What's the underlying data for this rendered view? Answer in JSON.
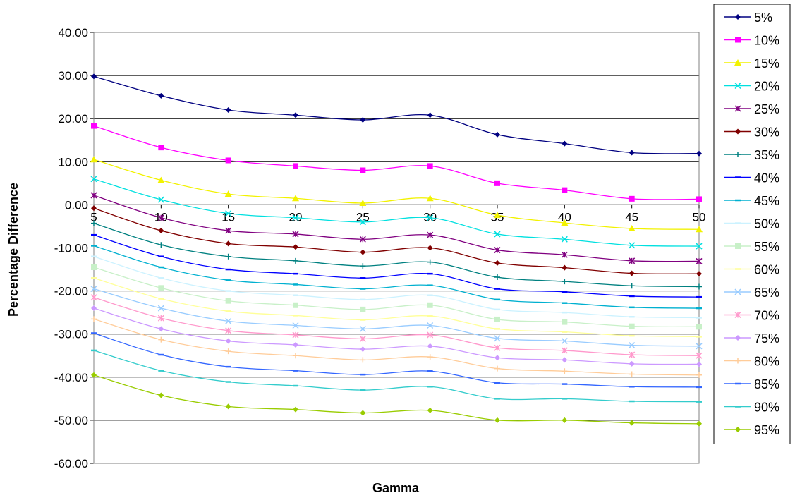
{
  "chart_data": {
    "type": "line",
    "title": "",
    "xlabel": "Gamma",
    "ylabel": "Percentage Difference",
    "x": [
      5,
      10,
      15,
      20,
      25,
      30,
      35,
      40,
      45,
      50
    ],
    "x_tick_labels": [
      "5",
      "10",
      "15",
      "20",
      "25",
      "30",
      "35",
      "40",
      "45",
      "50"
    ],
    "ylim": [
      -60,
      40
    ],
    "y_ticks": [
      40,
      30,
      20,
      10,
      0,
      -10,
      -20,
      -30,
      -40,
      -50,
      -60
    ],
    "y_tick_labels": [
      "40.00",
      "30.00",
      "20.00",
      "10.00",
      "0.00",
      "-10.00",
      "-20.00",
      "-30.00",
      "-40.00",
      "-50.00",
      "-60.00"
    ],
    "grid": "horizontal",
    "legend_position": "right",
    "series": [
      {
        "name": "5%",
        "color": "#000080",
        "marker": "diamond",
        "values": [
          29.8,
          25.3,
          22.0,
          20.8,
          19.7,
          20.8,
          16.3,
          14.2,
          12.1,
          11.9
        ]
      },
      {
        "name": "10%",
        "color": "#ff00ff",
        "marker": "square",
        "values": [
          18.3,
          13.3,
          10.3,
          9.0,
          8.0,
          9.0,
          5.0,
          3.4,
          1.4,
          1.3
        ]
      },
      {
        "name": "15%",
        "color": "#f2f200",
        "marker": "triangle",
        "values": [
          10.5,
          5.7,
          2.5,
          1.5,
          0.4,
          1.5,
          -2.4,
          -4.2,
          -5.5,
          -5.7
        ]
      },
      {
        "name": "20%",
        "color": "#00e0e0",
        "marker": "x",
        "values": [
          6.0,
          1.2,
          -2.0,
          -3.0,
          -4.0,
          -3.0,
          -6.8,
          -8.0,
          -9.4,
          -9.6
        ]
      },
      {
        "name": "25%",
        "color": "#800080",
        "marker": "star",
        "values": [
          2.2,
          -3.0,
          -6.0,
          -6.8,
          -8.0,
          -7.0,
          -10.5,
          -11.6,
          -13.0,
          -13.1
        ]
      },
      {
        "name": "30%",
        "color": "#800000",
        "marker": "diamond",
        "values": [
          -0.8,
          -6.0,
          -9.0,
          -9.8,
          -11.0,
          -10.0,
          -13.5,
          -14.6,
          -15.9,
          -16.0
        ]
      },
      {
        "name": "35%",
        "color": "#008080",
        "marker": "plus",
        "values": [
          -4.3,
          -9.3,
          -12.0,
          -13.0,
          -14.2,
          -13.3,
          -16.8,
          -17.8,
          -18.8,
          -19.0
        ]
      },
      {
        "name": "40%",
        "color": "#0000ff",
        "marker": "dash",
        "values": [
          -7.0,
          -12.0,
          -15.0,
          -16.0,
          -17.0,
          -16.0,
          -19.5,
          -20.2,
          -21.2,
          -21.4
        ]
      },
      {
        "name": "45%",
        "color": "#00b0d0",
        "marker": "dash",
        "values": [
          -9.5,
          -14.5,
          -17.5,
          -18.5,
          -19.5,
          -18.7,
          -22.0,
          -22.8,
          -23.8,
          -24.0
        ]
      },
      {
        "name": "50%",
        "color": "#ccf2ff",
        "marker": "dash",
        "values": [
          -12.0,
          -17.0,
          -20.0,
          -21.0,
          -22.0,
          -21.0,
          -24.3,
          -25.0,
          -26.0,
          -26.2
        ]
      },
      {
        "name": "55%",
        "color": "#c8f0c8",
        "marker": "square",
        "values": [
          -14.5,
          -19.3,
          -22.3,
          -23.3,
          -24.3,
          -23.3,
          -26.6,
          -27.2,
          -28.2,
          -28.3
        ]
      },
      {
        "name": "60%",
        "color": "#ffff99",
        "marker": "dash",
        "values": [
          -17.0,
          -21.8,
          -24.7,
          -25.7,
          -26.7,
          -25.8,
          -28.8,
          -29.5,
          -30.4,
          -30.6
        ]
      },
      {
        "name": "65%",
        "color": "#99ccff",
        "marker": "x",
        "values": [
          -19.5,
          -24.0,
          -27.0,
          -28.0,
          -28.8,
          -28.0,
          -31.0,
          -31.6,
          -32.6,
          -32.8
        ]
      },
      {
        "name": "70%",
        "color": "#ff99cc",
        "marker": "star",
        "values": [
          -21.5,
          -26.3,
          -29.2,
          -30.2,
          -31.1,
          -30.2,
          -33.2,
          -33.8,
          -34.8,
          -35.0
        ]
      },
      {
        "name": "75%",
        "color": "#cc99ff",
        "marker": "diamond",
        "values": [
          -24.0,
          -28.8,
          -31.6,
          -32.5,
          -33.5,
          -32.8,
          -35.5,
          -36.0,
          -36.9,
          -37.0
        ]
      },
      {
        "name": "80%",
        "color": "#ffcc99",
        "marker": "plus",
        "values": [
          -26.5,
          -31.3,
          -34.0,
          -35.0,
          -36.0,
          -35.3,
          -38.0,
          -38.6,
          -39.3,
          -39.5
        ]
      },
      {
        "name": "85%",
        "color": "#3366ff",
        "marker": "dash",
        "values": [
          -29.8,
          -34.8,
          -37.6,
          -38.5,
          -39.4,
          -38.6,
          -41.3,
          -41.6,
          -42.2,
          -42.3
        ]
      },
      {
        "name": "90%",
        "color": "#33cccc",
        "marker": "dash",
        "values": [
          -33.8,
          -38.5,
          -41.1,
          -42.0,
          -43.0,
          -42.2,
          -45.0,
          -45.0,
          -45.6,
          -45.7
        ]
      },
      {
        "name": "95%",
        "color": "#99cc00",
        "marker": "diamond",
        "values": [
          -39.5,
          -44.2,
          -46.8,
          -47.5,
          -48.3,
          -47.7,
          -50.0,
          -50.0,
          -50.6,
          -50.8
        ]
      }
    ]
  }
}
